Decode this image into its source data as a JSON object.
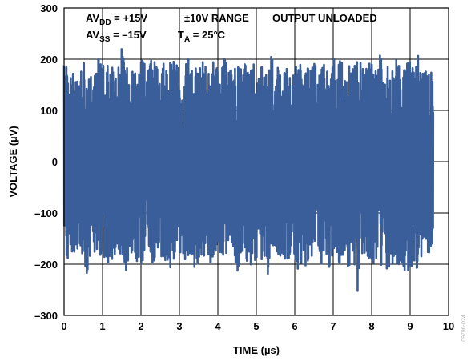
{
  "chart_data": {
    "type": "line",
    "xlabel": "TIME (µs)",
    "ylabel": "VOLTAGE (µV)",
    "xlim": [
      0,
      10
    ],
    "ylim": [
      -300,
      300
    ],
    "x_ticks": [
      "0",
      "1",
      "2",
      "3",
      "4",
      "5",
      "6",
      "7",
      "8",
      "9",
      "10"
    ],
    "y_ticks": [
      "300",
      "200",
      "100",
      "0",
      "–100",
      "–200",
      "–300"
    ],
    "grid": true,
    "series_color": "#3a5e9a",
    "series": [
      {
        "x_range": [
          0,
          9.6
        ],
        "description_values": {
          "min": -290,
          "max": 225,
          "typical_band": [
            -150,
            150
          ]
        },
        "x": [
          0.0,
          0.1,
          0.2,
          0.3,
          0.4,
          0.5,
          0.6,
          0.7,
          0.8,
          0.9,
          1.0,
          1.1,
          1.2,
          1.3,
          1.4,
          1.5,
          1.6,
          1.7,
          1.8,
          1.9,
          2.0,
          2.1,
          2.2,
          2.3,
          2.4,
          2.5,
          2.6,
          2.7,
          2.8,
          2.9,
          3.0,
          3.1,
          3.2,
          3.3,
          3.4,
          3.5,
          3.6,
          3.7,
          3.8,
          3.9,
          4.0,
          4.1,
          4.2,
          4.3,
          4.4,
          4.5,
          4.6,
          4.7,
          4.8,
          4.9,
          5.0,
          5.1,
          5.2,
          5.3,
          5.4,
          5.5,
          5.6,
          5.7,
          5.8,
          5.9,
          6.0,
          6.1,
          6.2,
          6.3,
          6.4,
          6.5,
          6.6,
          6.7,
          6.8,
          6.9,
          7.0,
          7.1,
          7.2,
          7.3,
          7.4,
          7.5,
          7.6,
          7.7,
          7.8,
          7.9,
          8.0,
          8.1,
          8.2,
          8.3,
          8.4,
          8.5,
          8.6,
          8.7,
          8.8,
          8.9,
          9.0,
          9.1,
          9.2,
          9.3,
          9.4,
          9.5,
          9.6
        ],
        "max_envelope": [
          195,
          185,
          170,
          180,
          160,
          195,
          175,
          165,
          180,
          200,
          185,
          195,
          170,
          200,
          180,
          225,
          175,
          195,
          185,
          160,
          200,
          190,
          175,
          210,
          185,
          165,
          195,
          175,
          205,
          185,
          195,
          170,
          200,
          210,
          190,
          175,
          195,
          185,
          170,
          200,
          175,
          210,
          195,
          185,
          170,
          200,
          180,
          190,
          175,
          185,
          200,
          180,
          195,
          170,
          210,
          185,
          200,
          170,
          190,
          165,
          185,
          200,
          175,
          195,
          175,
          190,
          200,
          180,
          195,
          175,
          205,
          185,
          200,
          170,
          190,
          180,
          210,
          195,
          175,
          185,
          200,
          175,
          210,
          190,
          180,
          210,
          200,
          195,
          170,
          190,
          195,
          180,
          210,
          205,
          175,
          185,
          170
        ],
        "min_envelope": [
          -180,
          -200,
          -175,
          -195,
          -165,
          -185,
          -220,
          -185,
          -175,
          -195,
          -165,
          -210,
          -180,
          -200,
          -185,
          -175,
          -215,
          -185,
          -170,
          -195,
          -205,
          -185,
          -170,
          -200,
          -185,
          -175,
          -205,
          -190,
          -215,
          -180,
          -170,
          -195,
          -185,
          -175,
          -220,
          -190,
          -185,
          -180,
          -195,
          -200,
          -180,
          -200,
          -175,
          -190,
          -185,
          -215,
          -195,
          -185,
          -200,
          -205,
          -185,
          -200,
          -180,
          -220,
          -170,
          -185,
          -195,
          -180,
          -200,
          -175,
          -185,
          -215,
          -190,
          -205,
          -175,
          -195,
          -180,
          -200,
          -210,
          -205,
          -180,
          -190,
          -200,
          -185,
          -210,
          -185,
          -290,
          -180,
          -195,
          -200,
          -200,
          -195,
          -225,
          -185,
          -210,
          -200,
          -195,
          -200,
          -195,
          -225,
          -205,
          -200,
          -210,
          -195,
          -170,
          -180,
          -165
        ]
      }
    ]
  },
  "annotations": {
    "line1": {
      "avdd_prefix": "AV",
      "avdd_sub": "DD",
      "avdd_value": " = +15V",
      "range": "±10V RANGE",
      "load": "OUTPUT UNLOADED"
    },
    "line2": {
      "avss_prefix": "AV",
      "avss_sub": "SS",
      "avss_value": " = –15V",
      "ta_prefix": "T",
      "ta_sub": "A",
      "ta_value": " = 25°C"
    }
  },
  "figure_id": "09796-024"
}
